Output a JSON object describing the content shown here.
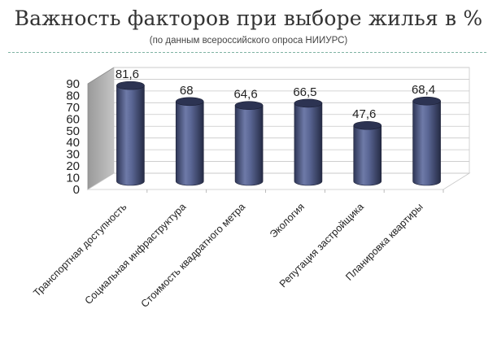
{
  "title": "Важность факторов при выборе жилья в %",
  "subtitle": "(по данным всероссийского  опроса  НИИУРС)",
  "colors": {
    "bar": "#4a5582",
    "bar_top": "#2c3352",
    "side_wall": "#b0b0b0",
    "grid": "#c8c8c8",
    "text": "#222222"
  },
  "chart_data": {
    "type": "bar",
    "title": "Важность факторов при выборе жилья в %",
    "subtitle": "(по данным всероссийского  опроса  НИИУРС)",
    "xlabel": "",
    "ylabel": "",
    "categories": [
      "Транспортная доступность",
      "Социальная инфраструктура",
      "Стоимость квадратного метра",
      "Экология",
      "Репутация застройщика",
      "Планировка квартиры"
    ],
    "values": [
      81.6,
      68,
      64.6,
      66.5,
      47.6,
      68.4
    ],
    "value_labels": [
      "81,6",
      "68",
      "64,6",
      "66,5",
      "47,6",
      "68,4"
    ],
    "ylim": [
      0,
      90
    ],
    "yticks": [
      0,
      10,
      20,
      30,
      40,
      50,
      60,
      70,
      80,
      90
    ],
    "grid": true,
    "legend": "none",
    "style": "3d-cylinder"
  }
}
